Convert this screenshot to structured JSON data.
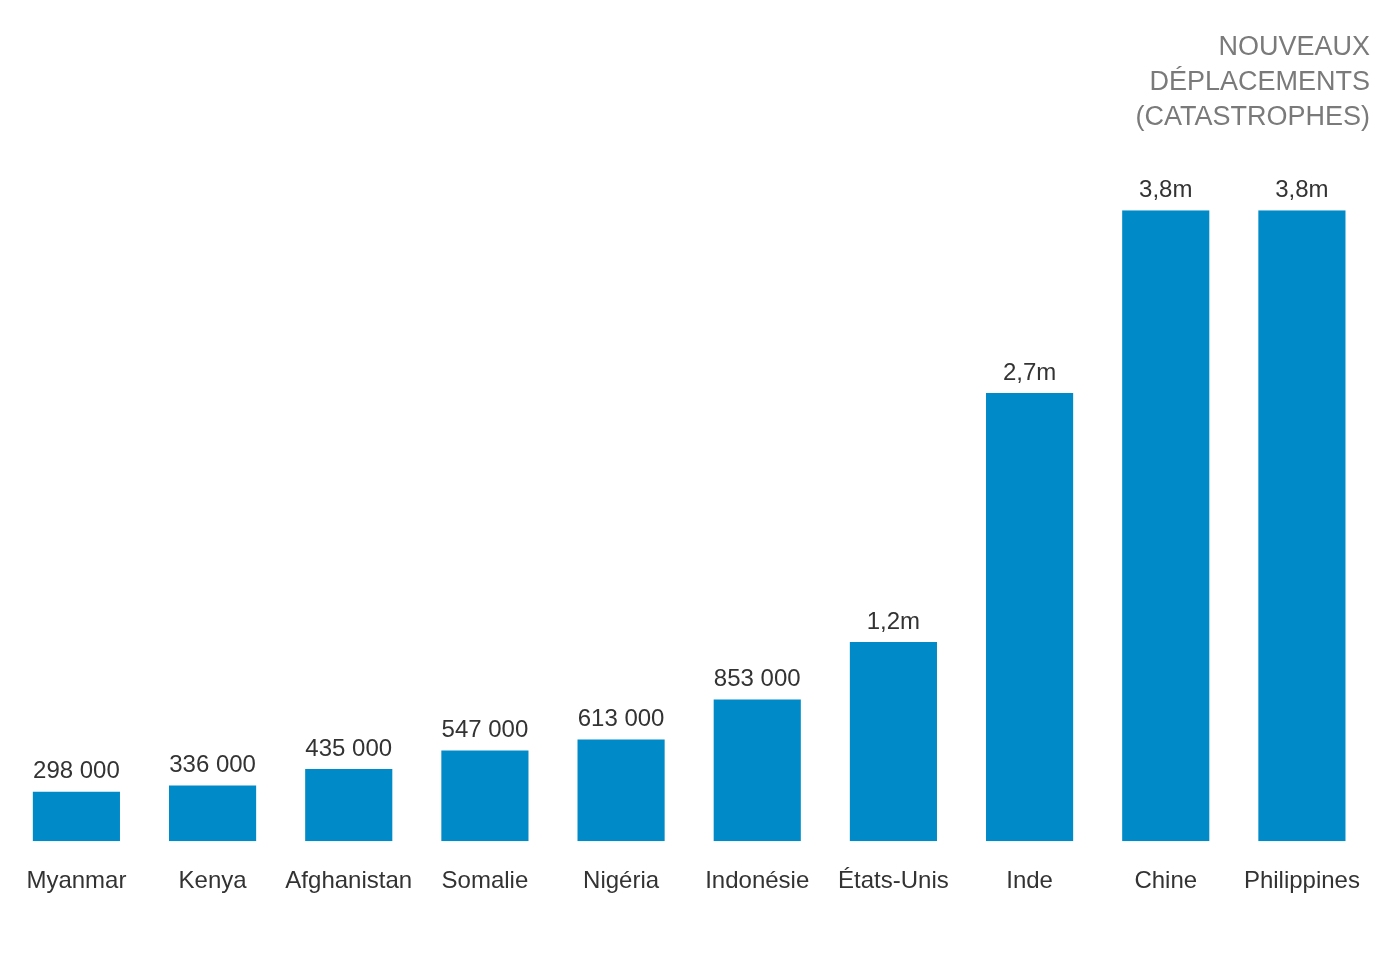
{
  "chart_data": {
    "type": "bar",
    "title": [
      "NOUVEAUX",
      "DÉPLACEMENTS",
      "(CATASTROPHES)"
    ],
    "categories": [
      "Myanmar",
      "Kenya",
      "Afghanistan",
      "Somalie",
      "Nigéria",
      "Indonésie",
      "États-Unis",
      "Inde",
      "Chine",
      "Philippines"
    ],
    "values": [
      298000,
      336000,
      435000,
      547000,
      613000,
      853000,
      1200000,
      2700000,
      3800000,
      3800000
    ],
    "value_labels": [
      "298 000",
      "336 000",
      "435 000",
      "547 000",
      "613 000",
      "853 000",
      "1,2m",
      "2,7m",
      "3,8m",
      "3,8m"
    ],
    "color": "#008bc8",
    "ylim": [
      0,
      3800000
    ],
    "grid": false,
    "data_labels": true,
    "tick_labels": "x"
  }
}
